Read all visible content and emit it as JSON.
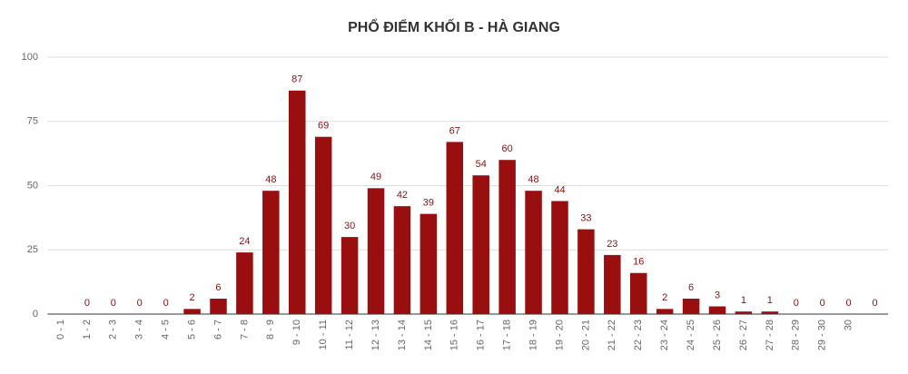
{
  "chart_data": {
    "type": "bar",
    "title": "PHỔ ĐIỂM KHỐI B - HÀ GIANG",
    "categories": [
      "0 - 1",
      "1 - 2",
      "2 - 3",
      "3 - 4",
      "4 - 5",
      "5 - 6",
      "6 - 7",
      "7 - 8",
      "8 - 9",
      "9 - 10",
      "10 - 11",
      "11 - 12",
      "12 - 13",
      "13 - 14",
      "14 - 15",
      "15 - 16",
      "16 - 17",
      "17 - 18",
      "18 - 19",
      "19 - 20",
      "20 - 21",
      "21 - 22",
      "22 - 23",
      "23 - 24",
      "24 - 25",
      "25 - 26",
      "26 - 27",
      "27 - 28",
      "28 - 29",
      "29 - 30",
      "30",
      null
    ],
    "values": [
      null,
      0,
      0,
      0,
      0,
      2,
      6,
      24,
      48,
      87,
      69,
      30,
      49,
      42,
      39,
      67,
      54,
      60,
      48,
      44,
      33,
      23,
      16,
      2,
      6,
      3,
      1,
      1,
      0,
      0,
      0,
      0
    ],
    "color": "#990f0f",
    "label_color": "#8b1010",
    "ylim": [
      0,
      100
    ],
    "yticks": [
      0,
      25,
      50,
      75,
      100
    ],
    "grid": true
  }
}
